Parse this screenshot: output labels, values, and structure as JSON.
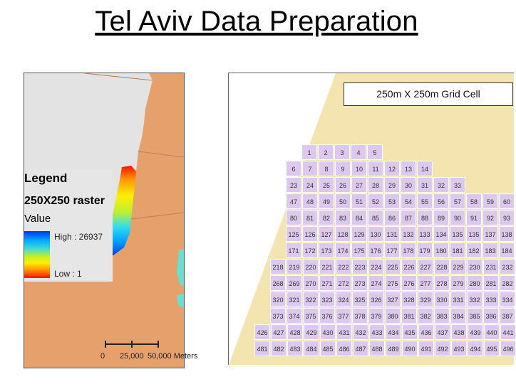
{
  "title": "Tel Aviv Data Preparation",
  "legend": {
    "title": "Legend",
    "layer": "250X250  raster",
    "field": "Value",
    "high_label": "High : 26937",
    "low_label": "Low : 1"
  },
  "scale_bar": {
    "labels": [
      "0",
      "25,000",
      "50,000 Meters"
    ]
  },
  "grid_caption": "250m X 250m Grid Cell",
  "colors": {
    "land": "#e6a06c",
    "coast_area": "#e6e6e6",
    "sand": "#f4e5b0",
    "grid_cell": "#ddc8ee",
    "water": "#67e0cf"
  },
  "grid_rows": [
    [
      "1",
      "2",
      "3",
      "4",
      "5"
    ],
    [
      "6",
      "7",
      "8",
      "9",
      "10",
      "11",
      "12",
      "13",
      "14"
    ],
    [
      "23",
      "24",
      "25",
      "26",
      "27",
      "28",
      "29",
      "30",
      "31",
      "32",
      "33"
    ],
    [
      "47",
      "48",
      "49",
      "50",
      "51",
      "52",
      "53",
      "54",
      "55",
      "56",
      "57",
      "58",
      "59",
      "60"
    ],
    [
      "80",
      "81",
      "82",
      "83",
      "84",
      "85",
      "86",
      "87",
      "88",
      "89",
      "90",
      "91",
      "92",
      "93"
    ],
    [
      "125",
      "126",
      "127",
      "128",
      "129",
      "130",
      "131",
      "132",
      "133",
      "134",
      "135",
      "135",
      "137",
      "138"
    ],
    [
      "171",
      "172",
      "173",
      "174",
      "175",
      "176",
      "177",
      "178",
      "179",
      "180",
      "181",
      "182",
      "183",
      "184"
    ],
    [
      "218",
      "219",
      "220",
      "221",
      "222",
      "223",
      "224",
      "225",
      "226",
      "227",
      "228",
      "229",
      "230",
      "231",
      "232"
    ],
    [
      "268",
      "269",
      "270",
      "271",
      "272",
      "273",
      "274",
      "275",
      "276",
      "277",
      "278",
      "279",
      "280",
      "281",
      "282"
    ],
    [
      "320",
      "321",
      "322",
      "323",
      "324",
      "325",
      "326",
      "327",
      "328",
      "329",
      "330",
      "331",
      "332",
      "333",
      "334"
    ],
    [
      "373",
      "374",
      "375",
      "376",
      "377",
      "378",
      "379",
      "380",
      "381",
      "382",
      "383",
      "384",
      "385",
      "386",
      "387"
    ],
    [
      "426",
      "427",
      "428",
      "429",
      "430",
      "431",
      "432",
      "433",
      "434",
      "435",
      "436",
      "437",
      "438",
      "439",
      "440",
      "441"
    ],
    [
      "481",
      "482",
      "483",
      "484",
      "485",
      "486",
      "487",
      "488",
      "489",
      "490",
      "491",
      "492",
      "493",
      "494",
      "495",
      "496"
    ]
  ]
}
